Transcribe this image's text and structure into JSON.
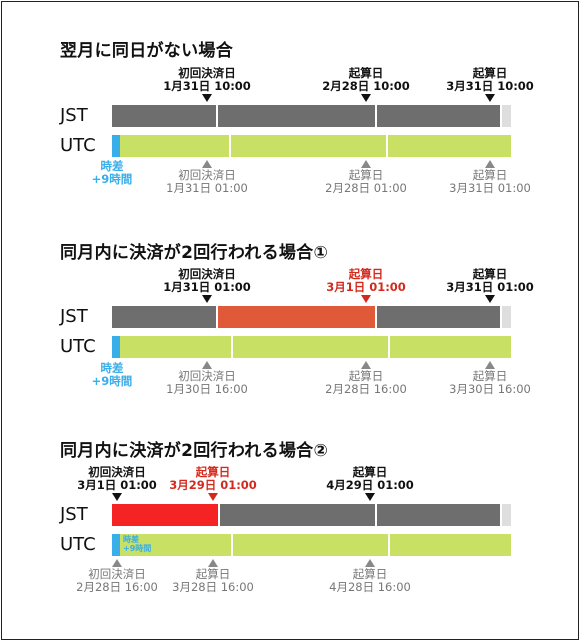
{
  "sections": [
    {
      "title": "翌月に同日がない場合",
      "jst_label": "JST",
      "utc_label": "UTC",
      "time_diff": [
        "時差",
        "+9時間"
      ],
      "top_markers": [
        {
          "line1": "初回決済日",
          "line2": "1月31日 10:00",
          "highlight": false
        },
        {
          "line1": "起算日",
          "line2": "2月28日 10:00",
          "highlight": false
        },
        {
          "line1": "起算日",
          "line2": "3月31日 10:00",
          "highlight": false
        }
      ],
      "bottom_markers": [
        {
          "line1": "初回決済日",
          "line2": "1月31日 01:00"
        },
        {
          "line1": "起算日",
          "line2": "2月28日 01:00"
        },
        {
          "line1": "起算日",
          "line2": "3月31日 01:00"
        }
      ]
    },
    {
      "title": "同月内に決済が2回行われる場合①",
      "jst_label": "JST",
      "utc_label": "UTC",
      "time_diff": [
        "時差",
        "+9時間"
      ],
      "top_markers": [
        {
          "line1": "初回決済日",
          "line2": "1月31日 01:00",
          "highlight": false
        },
        {
          "line1": "起算日",
          "line2": "3月1日 01:00",
          "highlight": true
        },
        {
          "line1": "起算日",
          "line2": "3月31日 01:00",
          "highlight": false
        }
      ],
      "bottom_markers": [
        {
          "line1": "初回決済日",
          "line2": "1月30日 16:00"
        },
        {
          "line1": "起算日",
          "line2": "2月28日 16:00"
        },
        {
          "line1": "起算日",
          "line2": "3月30日 16:00"
        }
      ]
    },
    {
      "title": "同月内に決済が2回行われる場合②",
      "jst_label": "JST",
      "utc_label": "UTC",
      "time_diff": [
        "時差",
        "+9時間"
      ],
      "top_markers": [
        {
          "line1": "初回決済日",
          "line2": "3月1日 01:00",
          "highlight": false
        },
        {
          "line1": "起算日",
          "line2": "3月29日 01:00",
          "highlight": true
        },
        {
          "line1": "起算日",
          "line2": "4月29日 01:00",
          "highlight": false
        }
      ],
      "bottom_markers": [
        {
          "line1": "初回決済日",
          "line2": "2月28日 16:00"
        },
        {
          "line1": "起算日",
          "line2": "3月28日 16:00"
        },
        {
          "line1": "起算日",
          "line2": "4月28日 16:00"
        }
      ]
    }
  ],
  "colors": {
    "jst_bar": "#6e6e6e",
    "utc_bar": "#c8e063",
    "highlight_period_1": "#e05a3a",
    "highlight_period_2": "#f52323",
    "highlight_text": "#d42a1e",
    "time_diff": "#3aaee8"
  }
}
